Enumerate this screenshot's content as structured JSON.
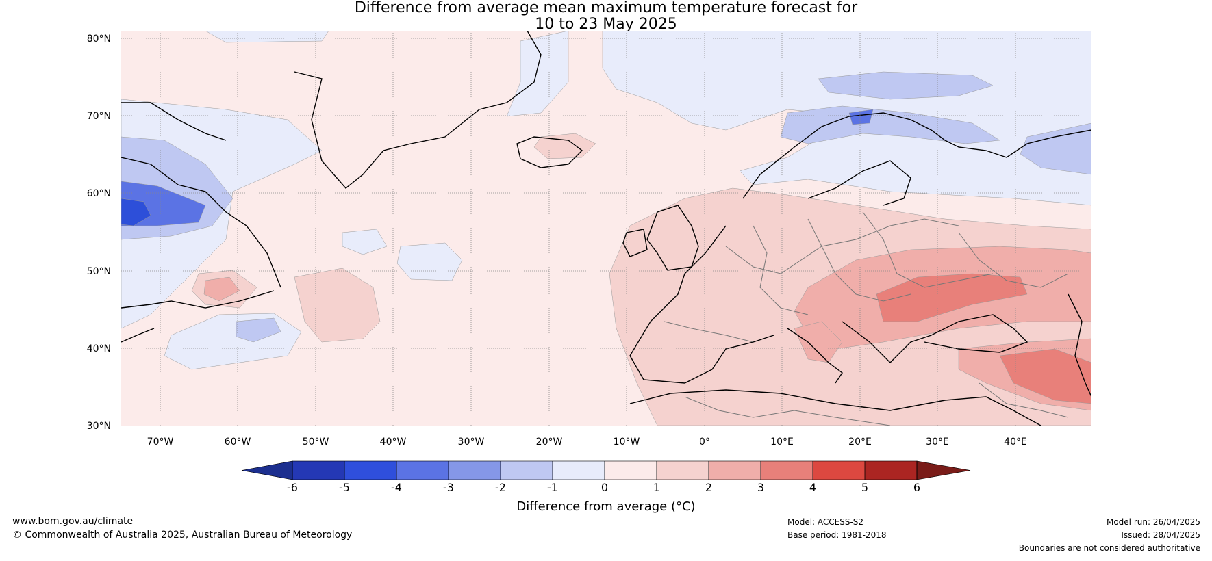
{
  "title": {
    "line1": "Difference from average mean maximum temperature forecast for",
    "line2": "10 to 23 May 2025"
  },
  "map": {
    "region": "North Atlantic and Europe",
    "lat_labels": [
      "80°N",
      "70°N",
      "60°N",
      "50°N",
      "40°N",
      "30°N"
    ],
    "lon_labels": [
      "70°W",
      "60°W",
      "50°W",
      "40°W",
      "30°W",
      "20°W",
      "10°W",
      "0°",
      "10°E",
      "20°E",
      "30°E",
      "40°E"
    ],
    "colors": {
      "background_anomaly": "#fcebea",
      "light_warm": "#f5d2cf",
      "mid_warm": "#f0aeaa",
      "strong_warm": "#e8807a",
      "light_cool": "#e8ecfb",
      "mid_cool": "#bfc8f2",
      "strong_cool": "#5b73e4",
      "deep_cool": "#2d4fd9"
    }
  },
  "colorbar": {
    "ticks": [
      "-6",
      "-5",
      "-4",
      "-3",
      "-2",
      "-1",
      "0",
      "1",
      "2",
      "3",
      "4",
      "5",
      "6"
    ],
    "colors": [
      "#1c2f8f",
      "#2438b5",
      "#2f4fdc",
      "#5b73e4",
      "#8597e8",
      "#bfc8f2",
      "#e8ecfb",
      "#fcebea",
      "#f5d2cf",
      "#f0aeaa",
      "#e8807a",
      "#dc4840",
      "#ab2522",
      "#7a1c19"
    ],
    "label": "Difference from average (°C)"
  },
  "footer": {
    "website": "www.bom.gov.au/climate",
    "copyright": "© Commonwealth of Australia 2025, Australian Bureau of Meteorology",
    "model": "Model: ACCESS-S2",
    "base_period": "Base period: 1981-2018",
    "model_run": "Model run: 26/04/2025",
    "issued": "Issued: 28/04/2025",
    "disclaimer": "Boundaries are not considered authoritative"
  }
}
